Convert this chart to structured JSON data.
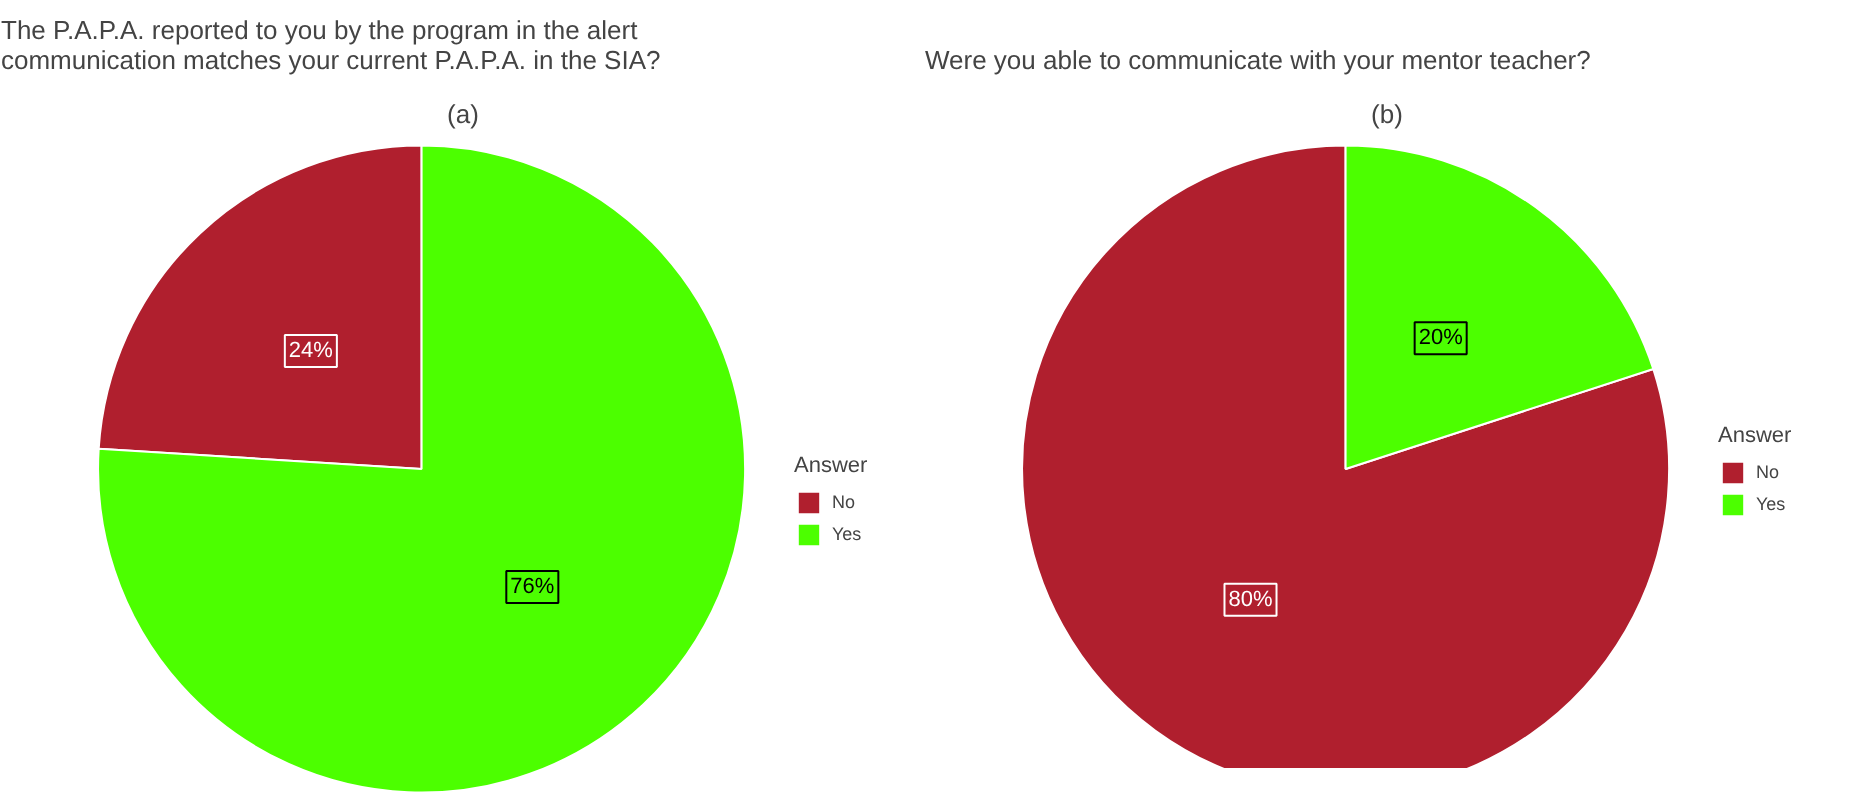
{
  "chart_data": [
    {
      "type": "pie",
      "title": "The P.A.P.A. reported to you by the program in the alert\n communication matches your current P.A.P.A. in the SIA?",
      "subtitle": "(a)",
      "legend_title": "Answer",
      "legend": "right",
      "categories": [
        "No",
        "Yes"
      ],
      "values": [
        24,
        76
      ],
      "value_labels": [
        "24%",
        "76%"
      ],
      "colors": [
        "#b01f2e",
        "#4cff00"
      ]
    },
    {
      "type": "pie",
      "title": "Were you able to communicate with your mentor teacher?",
      "subtitle": "(b)",
      "legend_title": "Answer",
      "legend": "right",
      "categories": [
        "No",
        "Yes"
      ],
      "values": [
        80,
        20
      ],
      "value_labels": [
        "80%",
        "20%"
      ],
      "colors": [
        "#b01f2e",
        "#4cff00"
      ]
    }
  ]
}
